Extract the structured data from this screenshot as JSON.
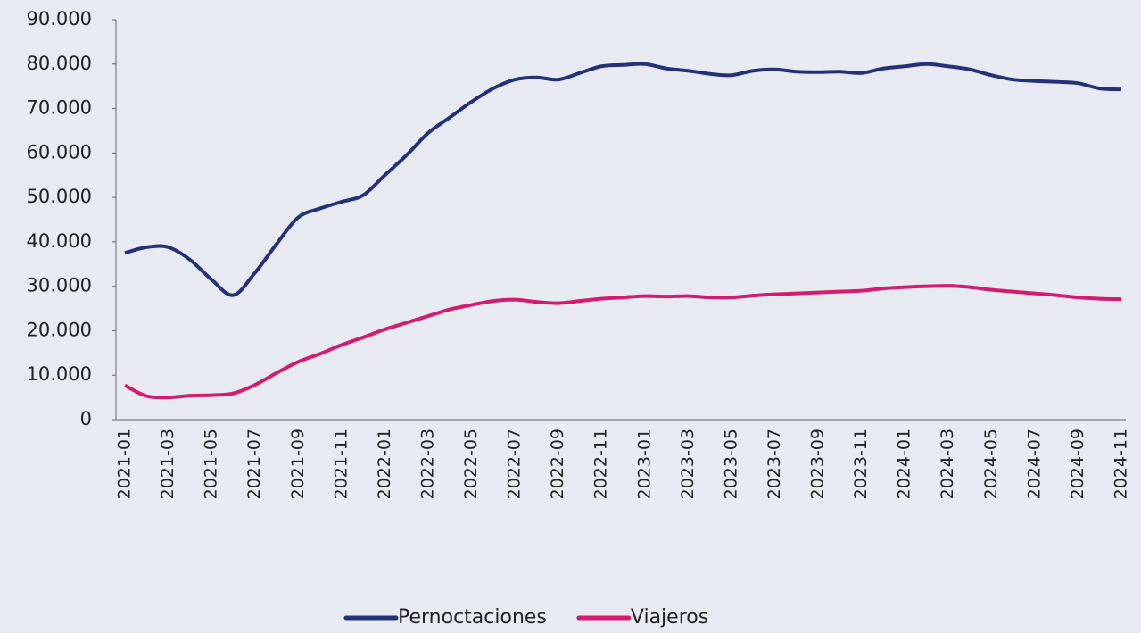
{
  "chart_data": {
    "type": "line",
    "categories": [
      "2021-01",
      null,
      "2021-03",
      null,
      "2021-05",
      null,
      "2021-07",
      null,
      "2021-09",
      null,
      "2021-11",
      null,
      "2022-01",
      null,
      "2022-03",
      null,
      "2022-05",
      null,
      "2022-07",
      null,
      "2022-09",
      null,
      "2022-11",
      null,
      "2023-01",
      null,
      "2023-03",
      null,
      "2023-05",
      null,
      "2023-07",
      null,
      "2023-09",
      null,
      "2023-11",
      null,
      "2024-01",
      null,
      "2024-03",
      null,
      "2024-05",
      null,
      "2024-07",
      null,
      "2024-09",
      null,
      "2024-11"
    ],
    "series": [
      {
        "name": "Pernoctaciones",
        "color": "#253176",
        "values": [
          37500,
          38800,
          38800,
          36000,
          31500,
          28000,
          33000,
          39500,
          45500,
          47500,
          49000,
          50500,
          55000,
          59500,
          64500,
          68000,
          71500,
          74500,
          76500,
          77000,
          76500,
          78000,
          79500,
          79800,
          80000,
          79000,
          78500,
          77800,
          77500,
          78500,
          78800,
          78300,
          78200,
          78300,
          78000,
          79000,
          79500,
          80000,
          79500,
          78800,
          77500,
          76500,
          76200,
          76000,
          75700,
          74500,
          74300
        ]
      },
      {
        "name": "Viajeros",
        "color": "#d31c6e",
        "values": [
          7700,
          5300,
          5000,
          5400,
          5500,
          5900,
          7800,
          10500,
          13000,
          14800,
          16800,
          18500,
          20300,
          21800,
          23300,
          24800,
          25800,
          26700,
          27000,
          26500,
          26200,
          26700,
          27200,
          27500,
          27800,
          27700,
          27800,
          27500,
          27500,
          27900,
          28200,
          28400,
          28600,
          28800,
          29000,
          29500,
          29800,
          30000,
          30100,
          29800,
          29200,
          28800,
          28400,
          28000,
          27500,
          27200,
          27100
        ]
      }
    ],
    "ylim": [
      0,
      90000
    ],
    "yticks": [
      0,
      {
        "value": 10000,
        "label": "10.000"
      },
      {
        "value": 20000,
        "label": "20.000"
      },
      {
        "value": 30000,
        "label": "30.000"
      },
      {
        "value": 40000,
        "label": "40.000"
      },
      {
        "value": 50000,
        "label": "50.000"
      },
      {
        "value": 60000,
        "label": "60.000"
      },
      {
        "value": 70000,
        "label": "70.000"
      },
      {
        "value": 80000,
        "label": "80.000"
      },
      {
        "value": 90000,
        "label": "90.000"
      }
    ],
    "grid": false,
    "legend": "bottom"
  }
}
